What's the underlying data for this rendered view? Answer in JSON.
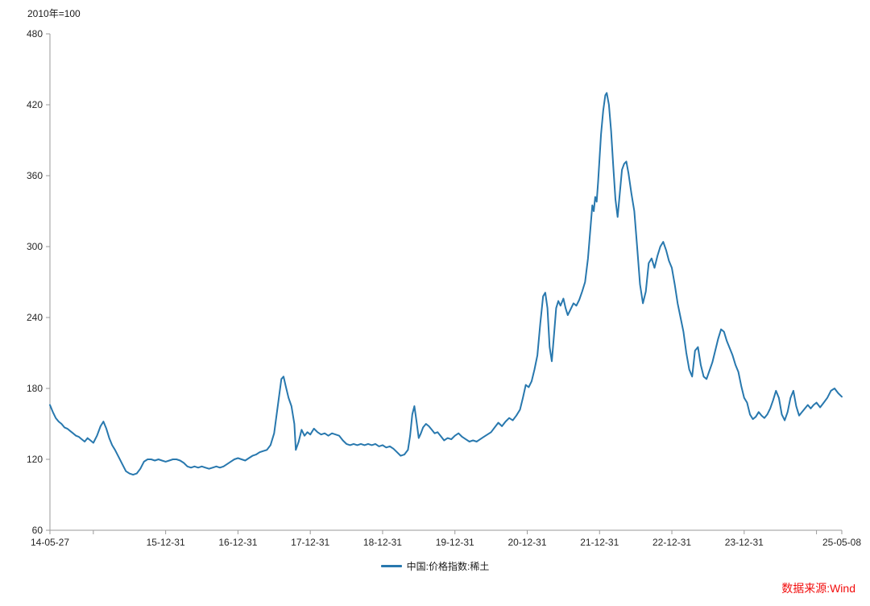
{
  "header": {
    "unit_label": "2010年=100"
  },
  "legend": {
    "label": "中国:价格指数:稀土"
  },
  "source": {
    "label": "数据来源:Wind",
    "color": "#f20d0d"
  },
  "colors": {
    "line": "#2878ae",
    "axis": "#9a9a9a",
    "tick_text": "#262626"
  },
  "chart_data": {
    "type": "line",
    "title": "",
    "ylabel": "2010年=100",
    "ylim": [
      60,
      480
    ],
    "yticks": [
      60,
      120,
      180,
      240,
      300,
      360,
      420,
      480
    ],
    "xlim": [
      2014.4,
      2025.35
    ],
    "grid": false,
    "legend_position": "bottom-center",
    "xticks": [
      {
        "pos": 2014.4,
        "label": "14-05-27"
      },
      {
        "pos": 2015.0,
        "label": ""
      },
      {
        "pos": 2016.0,
        "label": "15-12-31"
      },
      {
        "pos": 2017.0,
        "label": "16-12-31"
      },
      {
        "pos": 2018.0,
        "label": "17-12-31"
      },
      {
        "pos": 2019.0,
        "label": "18-12-31"
      },
      {
        "pos": 2020.0,
        "label": "19-12-31"
      },
      {
        "pos": 2021.0,
        "label": "20-12-31"
      },
      {
        "pos": 2022.0,
        "label": "21-12-31"
      },
      {
        "pos": 2023.0,
        "label": "22-12-31"
      },
      {
        "pos": 2024.0,
        "label": "23-12-31"
      },
      {
        "pos": 2025.0,
        "label": ""
      },
      {
        "pos": 2025.35,
        "label": "25-05-08"
      }
    ],
    "series": [
      {
        "name": "中国:价格指数:稀土",
        "color": "#2878ae",
        "points": [
          [
            2014.4,
            166
          ],
          [
            2014.44,
            160
          ],
          [
            2014.48,
            155
          ],
          [
            2014.52,
            152
          ],
          [
            2014.56,
            150
          ],
          [
            2014.6,
            147
          ],
          [
            2014.64,
            146
          ],
          [
            2014.68,
            144
          ],
          [
            2014.72,
            142
          ],
          [
            2014.76,
            140
          ],
          [
            2014.8,
            139
          ],
          [
            2014.84,
            137
          ],
          [
            2014.88,
            135
          ],
          [
            2014.92,
            138
          ],
          [
            2014.96,
            136
          ],
          [
            2015.0,
            134
          ],
          [
            2015.05,
            140
          ],
          [
            2015.1,
            148
          ],
          [
            2015.14,
            152
          ],
          [
            2015.18,
            146
          ],
          [
            2015.22,
            138
          ],
          [
            2015.26,
            132
          ],
          [
            2015.3,
            128
          ],
          [
            2015.35,
            122
          ],
          [
            2015.4,
            116
          ],
          [
            2015.45,
            110
          ],
          [
            2015.5,
            108
          ],
          [
            2015.55,
            107
          ],
          [
            2015.6,
            108
          ],
          [
            2015.65,
            112
          ],
          [
            2015.7,
            118
          ],
          [
            2015.75,
            120
          ],
          [
            2015.8,
            120
          ],
          [
            2015.85,
            119
          ],
          [
            2015.9,
            120
          ],
          [
            2015.95,
            119
          ],
          [
            2016.0,
            118
          ],
          [
            2016.05,
            119
          ],
          [
            2016.1,
            120
          ],
          [
            2016.15,
            120
          ],
          [
            2016.2,
            119
          ],
          [
            2016.25,
            117
          ],
          [
            2016.3,
            114
          ],
          [
            2016.35,
            113
          ],
          [
            2016.4,
            114
          ],
          [
            2016.45,
            113
          ],
          [
            2016.5,
            114
          ],
          [
            2016.55,
            113
          ],
          [
            2016.6,
            112
          ],
          [
            2016.65,
            113
          ],
          [
            2016.7,
            114
          ],
          [
            2016.75,
            113
          ],
          [
            2016.8,
            114
          ],
          [
            2016.85,
            116
          ],
          [
            2016.9,
            118
          ],
          [
            2016.95,
            120
          ],
          [
            2017.0,
            121
          ],
          [
            2017.05,
            120
          ],
          [
            2017.1,
            119
          ],
          [
            2017.15,
            121
          ],
          [
            2017.2,
            123
          ],
          [
            2017.25,
            124
          ],
          [
            2017.3,
            126
          ],
          [
            2017.35,
            127
          ],
          [
            2017.4,
            128
          ],
          [
            2017.45,
            132
          ],
          [
            2017.5,
            142
          ],
          [
            2017.55,
            165
          ],
          [
            2017.6,
            188
          ],
          [
            2017.63,
            190
          ],
          [
            2017.66,
            182
          ],
          [
            2017.7,
            172
          ],
          [
            2017.74,
            165
          ],
          [
            2017.78,
            150
          ],
          [
            2017.8,
            128
          ],
          [
            2017.84,
            135
          ],
          [
            2017.88,
            145
          ],
          [
            2017.92,
            140
          ],
          [
            2017.96,
            143
          ],
          [
            2018.0,
            141
          ],
          [
            2018.05,
            146
          ],
          [
            2018.1,
            143
          ],
          [
            2018.15,
            141
          ],
          [
            2018.2,
            142
          ],
          [
            2018.25,
            140
          ],
          [
            2018.3,
            142
          ],
          [
            2018.35,
            141
          ],
          [
            2018.4,
            140
          ],
          [
            2018.45,
            136
          ],
          [
            2018.5,
            133
          ],
          [
            2018.55,
            132
          ],
          [
            2018.6,
            133
          ],
          [
            2018.65,
            132
          ],
          [
            2018.7,
            133
          ],
          [
            2018.75,
            132
          ],
          [
            2018.8,
            133
          ],
          [
            2018.85,
            132
          ],
          [
            2018.9,
            133
          ],
          [
            2018.95,
            131
          ],
          [
            2019.0,
            132
          ],
          [
            2019.05,
            130
          ],
          [
            2019.1,
            131
          ],
          [
            2019.15,
            129
          ],
          [
            2019.2,
            126
          ],
          [
            2019.25,
            123
          ],
          [
            2019.3,
            124
          ],
          [
            2019.35,
            128
          ],
          [
            2019.38,
            140
          ],
          [
            2019.41,
            158
          ],
          [
            2019.44,
            165
          ],
          [
            2019.47,
            152
          ],
          [
            2019.5,
            138
          ],
          [
            2019.53,
            142
          ],
          [
            2019.56,
            147
          ],
          [
            2019.6,
            150
          ],
          [
            2019.64,
            148
          ],
          [
            2019.68,
            145
          ],
          [
            2019.72,
            142
          ],
          [
            2019.76,
            143
          ],
          [
            2019.8,
            140
          ],
          [
            2019.85,
            136
          ],
          [
            2019.9,
            138
          ],
          [
            2019.95,
            137
          ],
          [
            2020.0,
            140
          ],
          [
            2020.05,
            142
          ],
          [
            2020.1,
            139
          ],
          [
            2020.15,
            137
          ],
          [
            2020.2,
            135
          ],
          [
            2020.25,
            136
          ],
          [
            2020.3,
            135
          ],
          [
            2020.35,
            137
          ],
          [
            2020.4,
            139
          ],
          [
            2020.45,
            141
          ],
          [
            2020.5,
            143
          ],
          [
            2020.55,
            147
          ],
          [
            2020.6,
            151
          ],
          [
            2020.65,
            148
          ],
          [
            2020.7,
            152
          ],
          [
            2020.75,
            155
          ],
          [
            2020.8,
            153
          ],
          [
            2020.85,
            157
          ],
          [
            2020.9,
            162
          ],
          [
            2020.94,
            172
          ],
          [
            2020.98,
            183
          ],
          [
            2021.02,
            181
          ],
          [
            2021.06,
            186
          ],
          [
            2021.1,
            196
          ],
          [
            2021.14,
            208
          ],
          [
            2021.18,
            235
          ],
          [
            2021.22,
            258
          ],
          [
            2021.25,
            261
          ],
          [
            2021.28,
            248
          ],
          [
            2021.31,
            215
          ],
          [
            2021.34,
            203
          ],
          [
            2021.37,
            225
          ],
          [
            2021.4,
            248
          ],
          [
            2021.43,
            254
          ],
          [
            2021.46,
            250
          ],
          [
            2021.5,
            256
          ],
          [
            2021.53,
            248
          ],
          [
            2021.56,
            242
          ],
          [
            2021.6,
            247
          ],
          [
            2021.64,
            252
          ],
          [
            2021.68,
            250
          ],
          [
            2021.72,
            255
          ],
          [
            2021.76,
            262
          ],
          [
            2021.8,
            270
          ],
          [
            2021.84,
            290
          ],
          [
            2021.88,
            320
          ],
          [
            2021.9,
            335
          ],
          [
            2021.92,
            330
          ],
          [
            2021.94,
            342
          ],
          [
            2021.96,
            338
          ],
          [
            2021.98,
            355
          ],
          [
            2022.0,
            375
          ],
          [
            2022.02,
            395
          ],
          [
            2022.05,
            415
          ],
          [
            2022.08,
            428
          ],
          [
            2022.1,
            430
          ],
          [
            2022.13,
            420
          ],
          [
            2022.16,
            398
          ],
          [
            2022.19,
            368
          ],
          [
            2022.22,
            340
          ],
          [
            2022.25,
            325
          ],
          [
            2022.28,
            345
          ],
          [
            2022.31,
            365
          ],
          [
            2022.34,
            370
          ],
          [
            2022.37,
            372
          ],
          [
            2022.4,
            362
          ],
          [
            2022.44,
            345
          ],
          [
            2022.48,
            330
          ],
          [
            2022.52,
            300
          ],
          [
            2022.56,
            268
          ],
          [
            2022.6,
            252
          ],
          [
            2022.64,
            262
          ],
          [
            2022.68,
            286
          ],
          [
            2022.72,
            290
          ],
          [
            2022.76,
            282
          ],
          [
            2022.8,
            292
          ],
          [
            2022.84,
            300
          ],
          [
            2022.88,
            304
          ],
          [
            2022.92,
            297
          ],
          [
            2022.96,
            288
          ],
          [
            2023.0,
            282
          ],
          [
            2023.04,
            268
          ],
          [
            2023.08,
            252
          ],
          [
            2023.12,
            240
          ],
          [
            2023.16,
            228
          ],
          [
            2023.2,
            210
          ],
          [
            2023.24,
            196
          ],
          [
            2023.28,
            190
          ],
          [
            2023.32,
            212
          ],
          [
            2023.36,
            215
          ],
          [
            2023.4,
            200
          ],
          [
            2023.44,
            190
          ],
          [
            2023.48,
            188
          ],
          [
            2023.52,
            195
          ],
          [
            2023.56,
            202
          ],
          [
            2023.6,
            212
          ],
          [
            2023.64,
            222
          ],
          [
            2023.68,
            230
          ],
          [
            2023.72,
            228
          ],
          [
            2023.76,
            220
          ],
          [
            2023.8,
            214
          ],
          [
            2023.84,
            208
          ],
          [
            2023.88,
            200
          ],
          [
            2023.92,
            194
          ],
          [
            2023.96,
            182
          ],
          [
            2024.0,
            172
          ],
          [
            2024.04,
            168
          ],
          [
            2024.08,
            158
          ],
          [
            2024.12,
            154
          ],
          [
            2024.16,
            156
          ],
          [
            2024.2,
            160
          ],
          [
            2024.24,
            157
          ],
          [
            2024.28,
            155
          ],
          [
            2024.32,
            158
          ],
          [
            2024.36,
            163
          ],
          [
            2024.4,
            170
          ],
          [
            2024.44,
            178
          ],
          [
            2024.48,
            172
          ],
          [
            2024.52,
            158
          ],
          [
            2024.56,
            153
          ],
          [
            2024.6,
            160
          ],
          [
            2024.64,
            172
          ],
          [
            2024.68,
            178
          ],
          [
            2024.72,
            165
          ],
          [
            2024.76,
            157
          ],
          [
            2024.8,
            160
          ],
          [
            2024.84,
            163
          ],
          [
            2024.88,
            166
          ],
          [
            2024.92,
            163
          ],
          [
            2024.96,
            166
          ],
          [
            2025.0,
            168
          ],
          [
            2025.05,
            164
          ],
          [
            2025.1,
            168
          ],
          [
            2025.15,
            172
          ],
          [
            2025.2,
            178
          ],
          [
            2025.25,
            180
          ],
          [
            2025.3,
            176
          ],
          [
            2025.35,
            173
          ]
        ]
      }
    ]
  }
}
